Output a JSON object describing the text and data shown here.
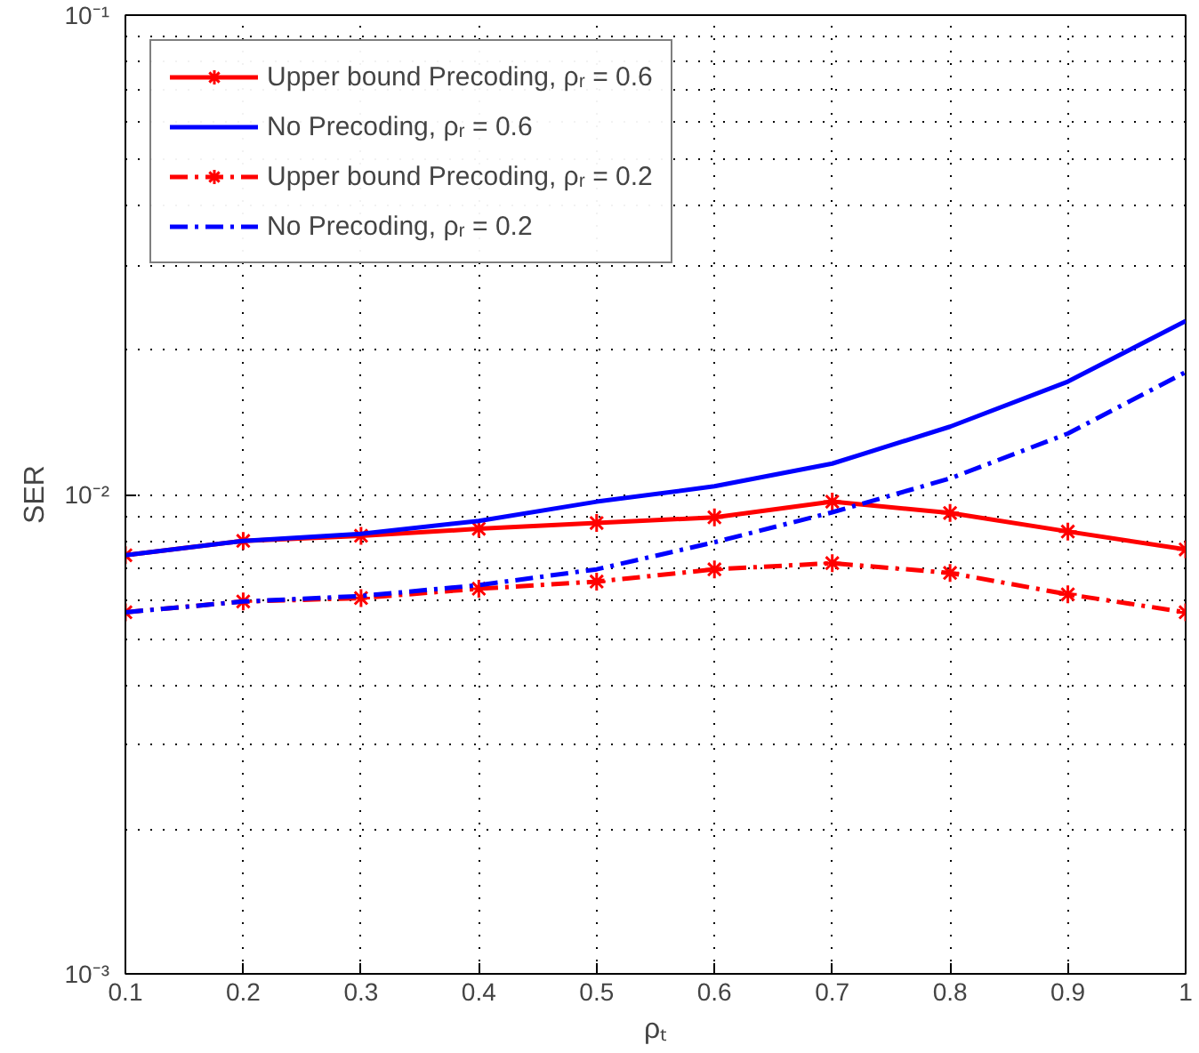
{
  "chart_data": {
    "type": "line",
    "xlabel": "ρₜ",
    "ylabel": "SER",
    "x": [
      0.1,
      0.2,
      0.3,
      0.4,
      0.5,
      0.6,
      0.7,
      0.8,
      0.9,
      1
    ],
    "series": [
      {
        "name": "Upper bound Precoding, ρᵣ = 0.6",
        "color": "#ff0000",
        "marker": "cross",
        "line_style": "solid",
        "values": [
          0.00747,
          0.008,
          0.0082,
          0.00848,
          0.00872,
          0.00896,
          0.00966,
          0.00915,
          0.00837,
          0.00768
        ]
      },
      {
        "name": "No Precoding, ρᵣ = 0.6",
        "color": "#0000ff",
        "marker": "none",
        "line_style": "solid",
        "values": [
          0.00747,
          0.008,
          0.00828,
          0.00881,
          0.00966,
          0.0104,
          0.0116,
          0.01385,
          0.0172,
          0.023
        ]
      },
      {
        "name": "Upper bound Precoding, ρᵣ = 0.2",
        "color": "#ff0000",
        "marker": "cross",
        "line_style": "dashdot",
        "values": [
          0.00568,
          0.00598,
          0.00608,
          0.00636,
          0.00658,
          0.00698,
          0.00719,
          0.00686,
          0.00619,
          0.00568
        ]
      },
      {
        "name": "No Precoding, ρᵣ = 0.2",
        "color": "#0000ff",
        "marker": "none",
        "line_style": "dashdot",
        "values": [
          0.00568,
          0.00598,
          0.00614,
          0.00647,
          0.00698,
          0.00795,
          0.00918,
          0.0108,
          0.0134,
          0.018
        ]
      }
    ],
    "log": "y",
    "xlim": [
      0.1,
      1
    ],
    "ylim": [
      0.001,
      0.1
    ],
    "xticks": [
      0.1,
      0.2,
      0.3,
      0.4,
      0.5,
      0.6,
      0.7,
      0.8,
      0.9,
      1
    ],
    "yticks": [
      {
        "value": 0.001,
        "label": "10⁻³"
      },
      {
        "value": 0.01,
        "label": "10⁻²"
      },
      {
        "value": 0.1,
        "label": "10⁻¹"
      }
    ],
    "grid": true,
    "legend": "top left"
  }
}
